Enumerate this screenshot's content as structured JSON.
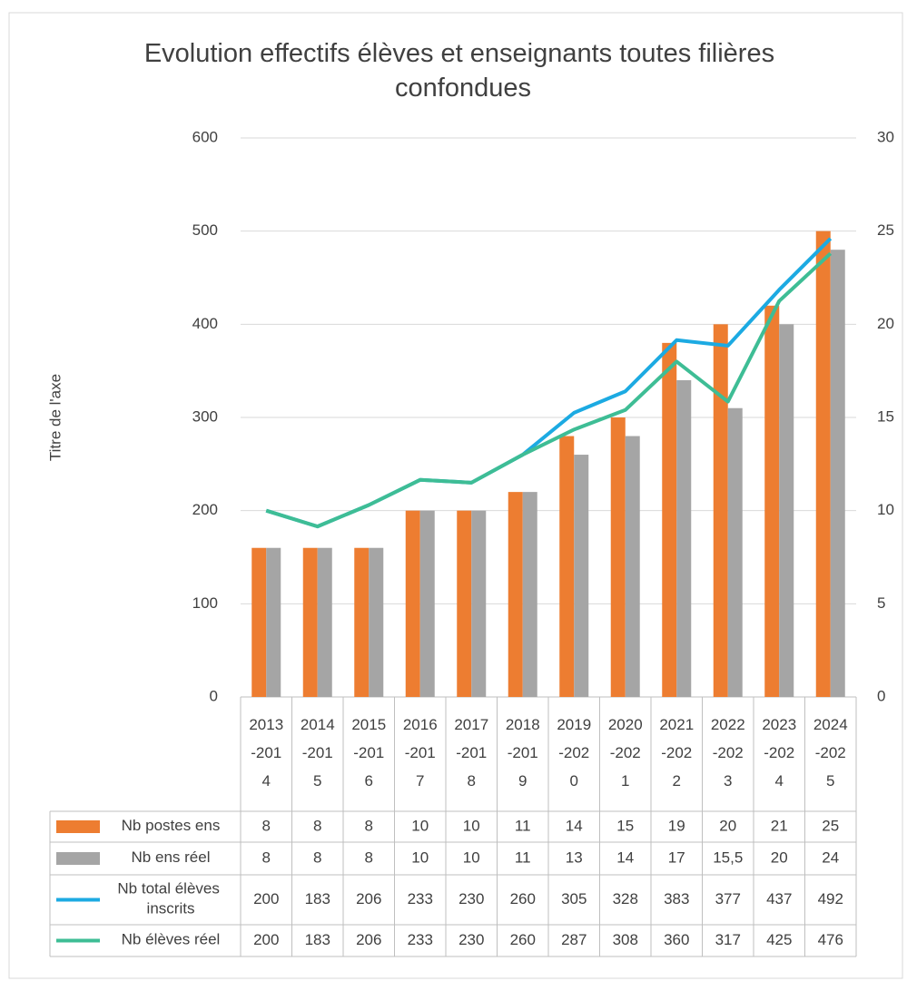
{
  "chart_data": {
    "type": "bar",
    "title": "Evolution effectifs élèves et enseignants toutes filières confondues",
    "y_axis_label": "Titre de l'axe",
    "categories": [
      "2013-2014",
      "2014-2015",
      "2015-2016",
      "2016-2017",
      "2017-2018",
      "2018-2019",
      "2019-2020",
      "2020-2021",
      "2021-2022",
      "2022-2023",
      "2023-2024",
      "2024-2025"
    ],
    "series": [
      {
        "name": "Nb postes ens",
        "type": "bar",
        "axis": "y2",
        "color": "#ed7d31",
        "values": [
          8,
          8,
          8,
          10,
          10,
          11,
          14,
          15,
          19,
          20,
          21,
          25
        ]
      },
      {
        "name": "Nb ens réel",
        "type": "bar",
        "axis": "y2",
        "color": "#a5a5a5",
        "values": [
          8,
          8,
          8,
          10,
          10,
          11,
          13,
          14,
          17,
          15.5,
          20,
          24
        ],
        "value_labels": [
          "8",
          "8",
          "8",
          "10",
          "10",
          "11",
          "13",
          "14",
          "17",
          "15,5",
          "20",
          "24"
        ]
      },
      {
        "name": "Nb total élèves inscrits",
        "type": "line",
        "axis": "y",
        "color": "#1caae2",
        "values": [
          200,
          183,
          206,
          233,
          230,
          260,
          305,
          328,
          383,
          377,
          437,
          492
        ]
      },
      {
        "name": "Nb élèves réel",
        "type": "line",
        "axis": "y",
        "color": "#3ebd95",
        "values": [
          200,
          183,
          206,
          233,
          230,
          260,
          287,
          308,
          360,
          317,
          425,
          476
        ]
      }
    ],
    "ylim": [
      0,
      600
    ],
    "yticks": [
      0,
      100,
      200,
      300,
      400,
      500,
      600
    ],
    "y2lim": [
      0,
      30
    ],
    "y2ticks": [
      0,
      5,
      10,
      15,
      20,
      25,
      30
    ],
    "grid": true,
    "data_table": true
  }
}
